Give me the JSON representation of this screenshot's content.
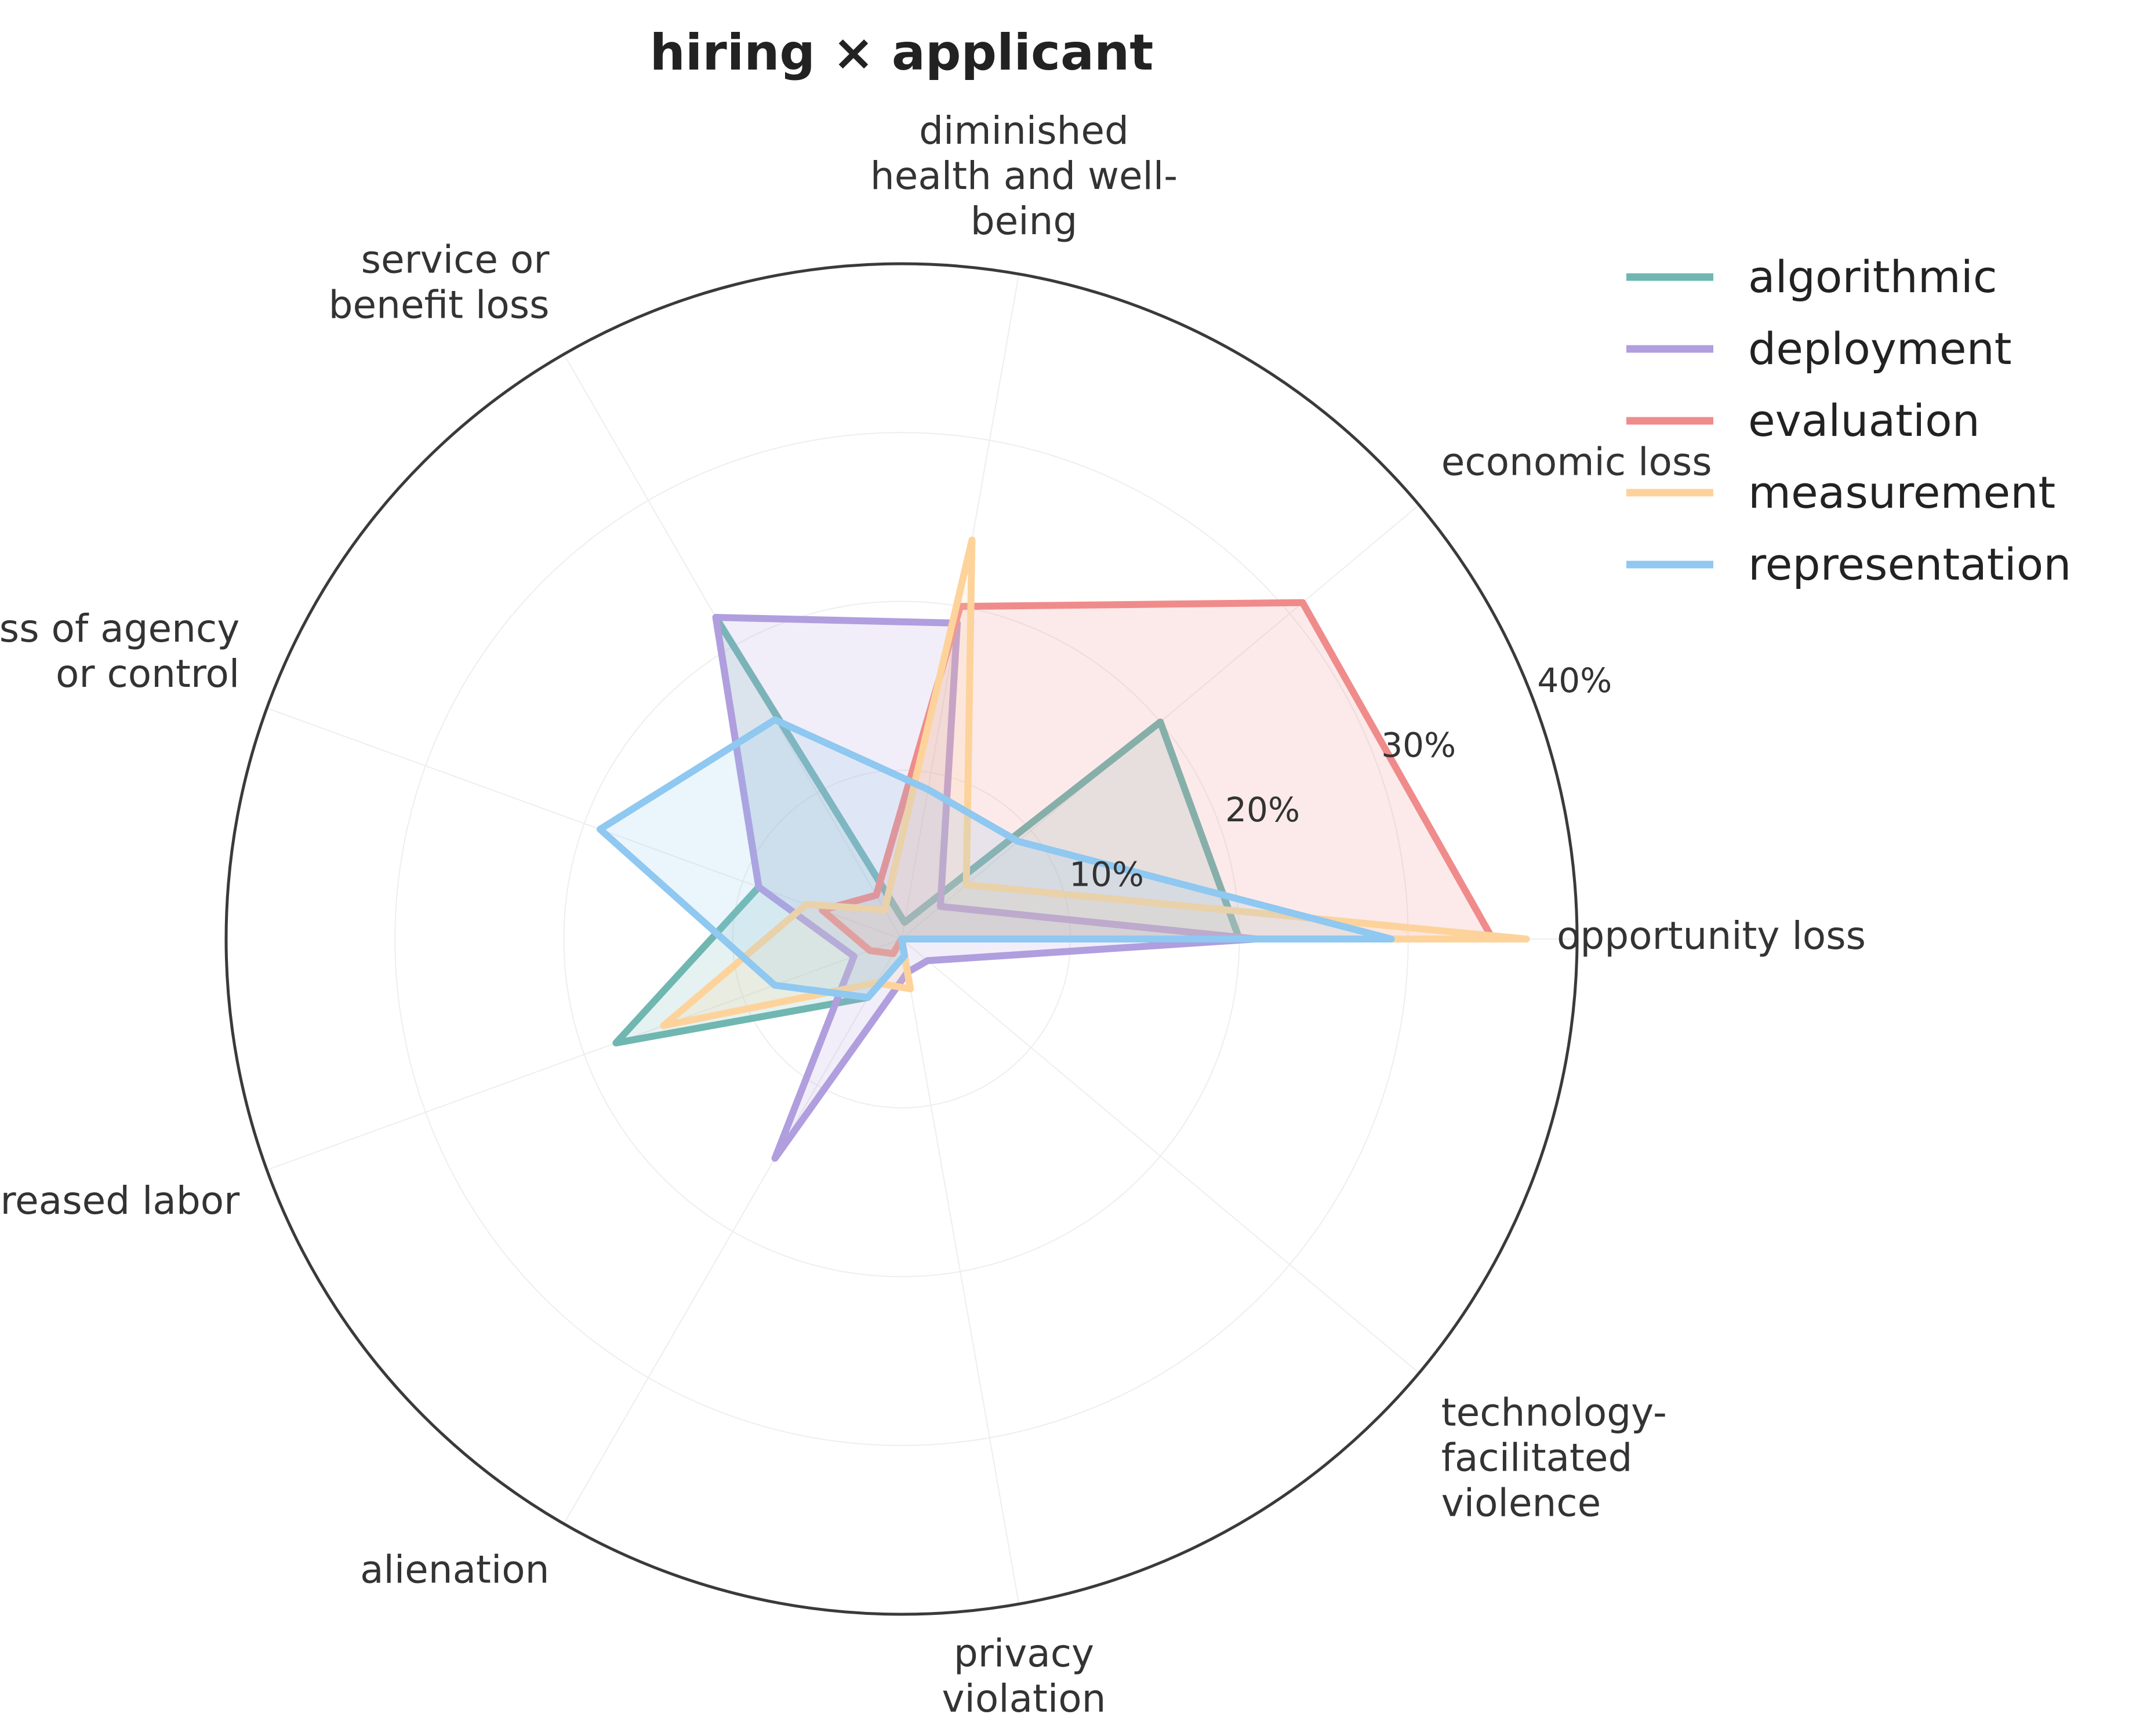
{
  "chart_data": {
    "type": "radar",
    "title": "hiring × applicant",
    "axes": [
      "opportunity loss",
      "economic loss",
      "diminished health and well-being",
      "service or benefit loss",
      "loss of agency or control",
      "increased labor",
      "alienation",
      "privacy violation",
      "technology-facilitated violence"
    ],
    "axis_label_lines": [
      [
        "opportunity loss"
      ],
      [
        "economic loss"
      ],
      [
        "diminished",
        "health and well-",
        "being"
      ],
      [
        "service or",
        "benefit loss"
      ],
      [
        "loss of agency",
        "or control"
      ],
      [
        "increased labor"
      ],
      [
        "alienation"
      ],
      [
        "privacy",
        "violation"
      ],
      [
        "technology-",
        "facilitated",
        "violence"
      ]
    ],
    "radial_ticks": [
      10,
      20,
      30,
      40
    ],
    "radial_tick_labels": [
      "10%",
      "20%",
      "30%",
      "40%"
    ],
    "rmax": 40,
    "grid": true,
    "legend_position": "top-right",
    "series": [
      {
        "name": "algorithmic",
        "color": "#6fb7b0",
        "values": [
          20,
          20,
          1,
          22,
          9,
          18,
          4,
          1,
          0
        ]
      },
      {
        "name": "deployment",
        "color": "#b09ede",
        "values": [
          21,
          3,
          19,
          22,
          9,
          3,
          15,
          2,
          2
        ]
      },
      {
        "name": "evaluation",
        "color": "#f08b8b",
        "values": [
          35,
          31,
          20,
          3,
          5,
          2,
          1,
          0,
          0
        ]
      },
      {
        "name": "measurement",
        "color": "#fdd39b",
        "values": [
          37,
          5,
          24,
          2,
          6,
          15,
          3,
          3,
          0
        ]
      },
      {
        "name": "representation",
        "color": "#8fc8f0",
        "values": [
          29,
          9,
          9,
          15,
          19,
          8,
          4,
          1,
          0
        ]
      }
    ]
  }
}
